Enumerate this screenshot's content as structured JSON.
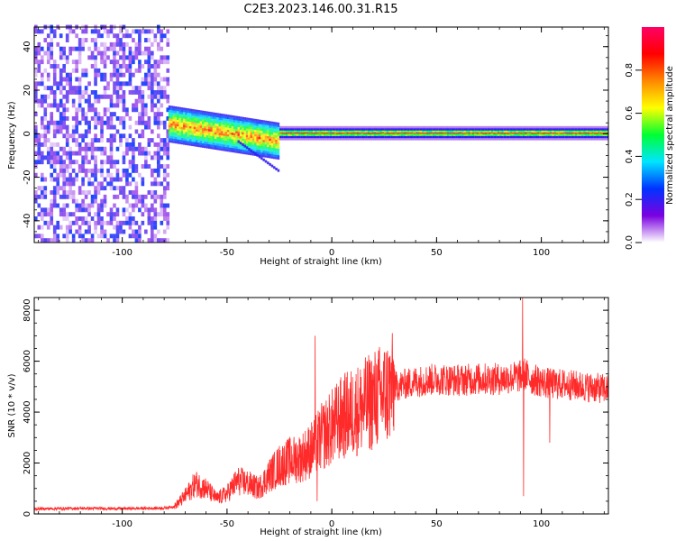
{
  "title": "C2E3.2023.146.00.31.R15",
  "chart_data": [
    {
      "type": "heatmap",
      "xlabel": "Height of straight line (km)",
      "ylabel": "Frequency (Hz)",
      "xlim": [
        -142,
        132
      ],
      "ylim": [
        -50,
        49
      ],
      "xticks": [
        -100,
        -50,
        0,
        50,
        100
      ],
      "yticks": [
        -40,
        -20,
        0,
        20,
        40
      ],
      "colorbar": {
        "label": "Normalized spectral amplitude",
        "range": [
          0.0,
          1.0
        ],
        "ticks": [
          0.0,
          0.2,
          0.4,
          0.6,
          0.8
        ],
        "tick_labels": [
          "0.0",
          "0.2",
          "0.4",
          "0.6",
          "0.8"
        ],
        "colormap": [
          "#ffffff",
          "#7a00e0",
          "#0033ff",
          "#00e5ff",
          "#00ff33",
          "#ffff00",
          "#ff8800",
          "#ff0000",
          "#ff0066"
        ]
      },
      "regions": [
        {
          "x_range": [
            -142,
            -78
          ],
          "freq_range": [
            -50,
            49
          ],
          "amplitude": [
            0.05,
            0.25
          ]
        },
        {
          "x_range": [
            -78,
            -25
          ],
          "freq_center": [
            4,
            -4
          ],
          "freq_width": 8,
          "amplitude": [
            0.2,
            0.9
          ]
        },
        {
          "x_range": [
            -25,
            132
          ],
          "freq_center": 0,
          "freq_width": 3,
          "amplitude": [
            0.8,
            1.0
          ]
        }
      ]
    },
    {
      "type": "line",
      "xlabel": "Height of straight line (km)",
      "ylabel": "SNR (10 * v/v)",
      "xlim": [
        -142,
        132
      ],
      "ylim": [
        0,
        8500
      ],
      "xticks": [
        -100,
        -50,
        0,
        50,
        100
      ],
      "yticks": [
        0,
        2000,
        4000,
        6000,
        8000
      ],
      "color": "#ff2a2a",
      "series": [
        {
          "x": [
            -142,
            -120,
            -100,
            -80,
            -75,
            -70,
            -65,
            -60,
            -55,
            -50,
            -45,
            -40,
            -35,
            -30,
            -25,
            -20,
            -15,
            -10,
            -5,
            0,
            5,
            10,
            15,
            20,
            25,
            30,
            40,
            50,
            60,
            70,
            80,
            90,
            92,
            95,
            100,
            105,
            110,
            120,
            132
          ],
          "values": [
            200,
            220,
            210,
            230,
            300,
            700,
            1200,
            1000,
            600,
            800,
            1300,
            1200,
            1000,
            1500,
            1900,
            2100,
            2200,
            2500,
            3000,
            3400,
            3800,
            4000,
            4200,
            4500,
            4700,
            5000,
            5200,
            5300,
            5250,
            5300,
            5300,
            5400,
            5500,
            5300,
            5200,
            5100,
            5100,
            5000,
            4900
          ],
          "spikes": [
            {
              "x": -8,
              "value": 7000
            },
            {
              "x": -7,
              "value": 500
            },
            {
              "x": 91,
              "value": 8500
            },
            {
              "x": 91.5,
              "value": 700
            },
            {
              "x": 104,
              "value": 2800
            }
          ]
        }
      ]
    }
  ]
}
